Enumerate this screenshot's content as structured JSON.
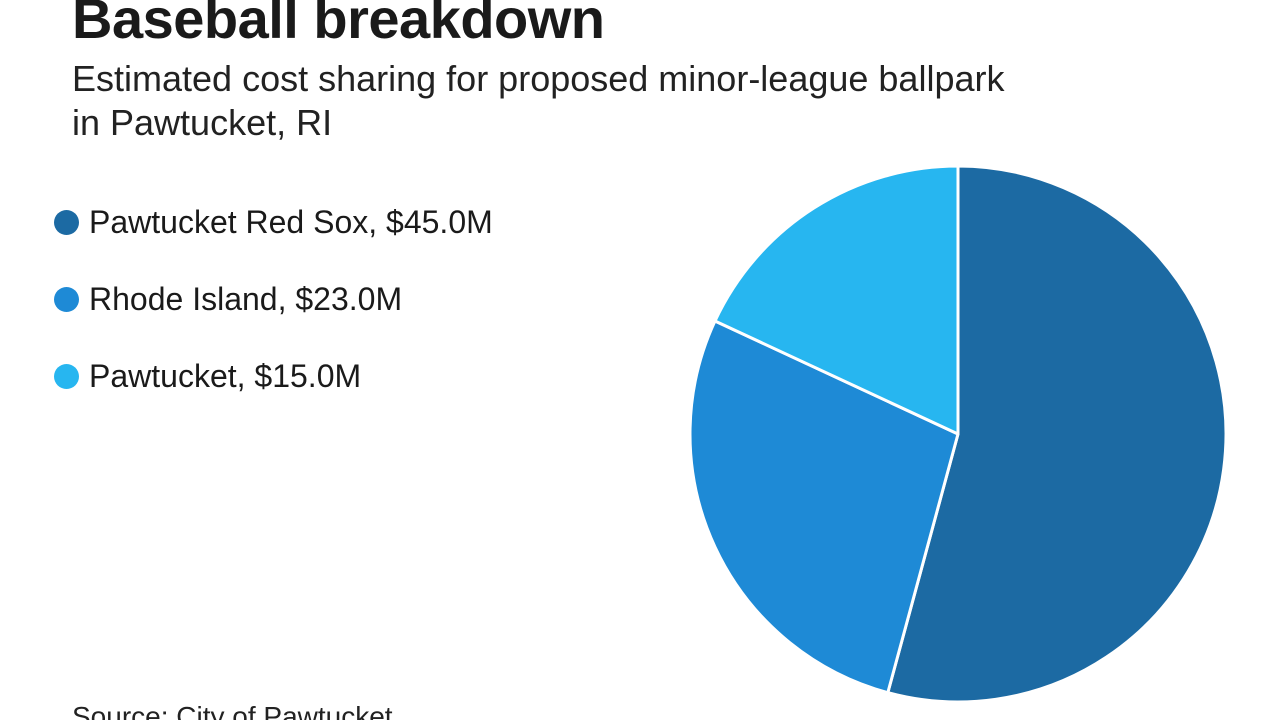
{
  "chart_data": {
    "type": "pie",
    "title": "Baseball breakdown",
    "subtitle": "Estimated cost sharing for proposed minor-league ballpark in Pawtucket, RI",
    "source": "Source: City of Pawtucket",
    "legend_position": "left",
    "start_angle": "12-o'clock",
    "direction": "clockwise",
    "slices": [
      {
        "name": "Pawtucket Red Sox",
        "value": 45.0,
        "label": "Pawtucket Red Sox, $45.0M",
        "color": "#1c6aa3"
      },
      {
        "name": "Rhode Island",
        "value": 23.0,
        "label": "Rhode Island, $23.0M",
        "color": "#1e8ad6"
      },
      {
        "name": "Pawtucket",
        "value": 15.0,
        "label": "Pawtucket, $15.0M",
        "color": "#27b6f0"
      }
    ]
  }
}
